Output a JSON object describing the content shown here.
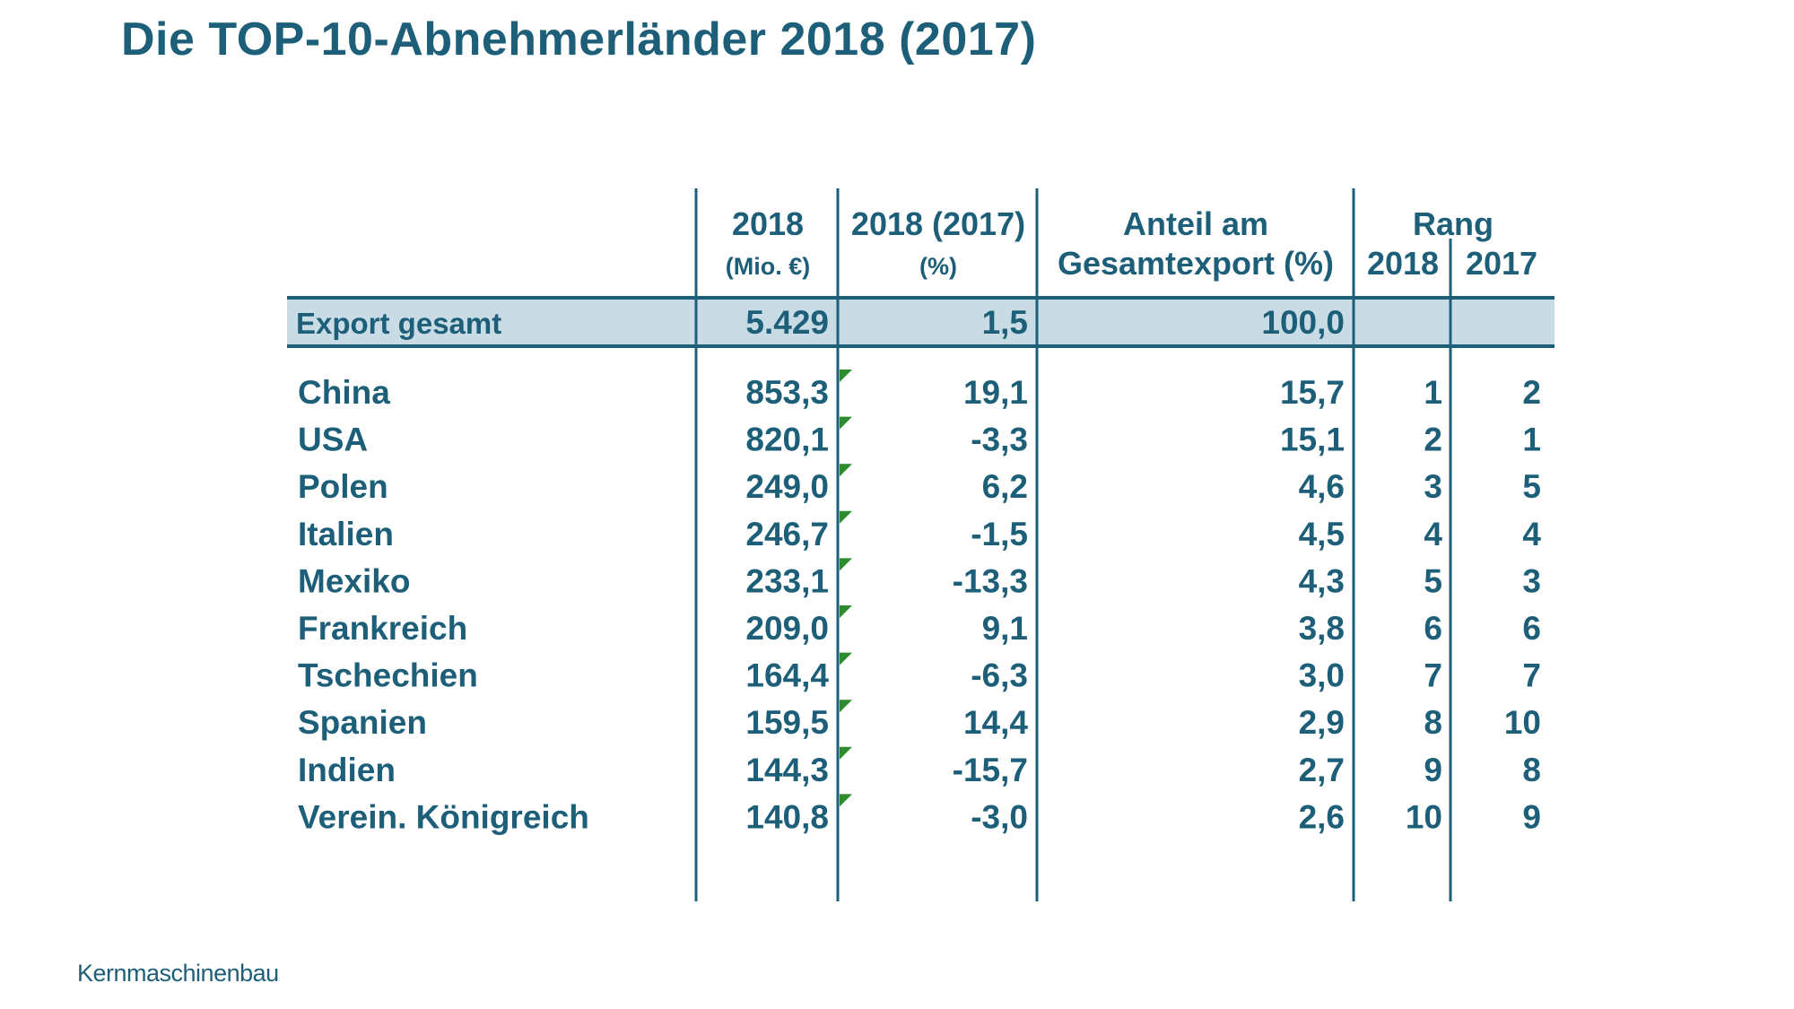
{
  "title": "Die TOP-10-Abnehmerländer 2018 (2017)",
  "footer": "Kernmaschinenbau",
  "colors": {
    "text": "#1d5f79",
    "rule": "#1d5f79",
    "total_fill": "#c9dce5",
    "marker": "#2e8b2e"
  },
  "chart_data": {
    "type": "table",
    "title": "Die TOP-10-Abnehmerländer 2018 (2017)",
    "headers": {
      "value_2018": {
        "line1": "2018",
        "line2": "(Mio. €)"
      },
      "change": {
        "line1": "2018 (2017)",
        "line2": "(%)"
      },
      "share": {
        "line1": "Anteil am",
        "line2": "Gesamtexport (%)"
      },
      "rank": {
        "label": "Rang",
        "year1": "2018",
        "year2": "2017"
      }
    },
    "total": {
      "label": "Export gesamt",
      "value": "5.429",
      "change": "1,5",
      "share": "100,0"
    },
    "rows": [
      {
        "country": "China",
        "value": "853,3",
        "change": "19,1",
        "share": "15,7",
        "rank2018": "1",
        "rank2017": "2"
      },
      {
        "country": "USA",
        "value": "820,1",
        "change": "-3,3",
        "share": "15,1",
        "rank2018": "2",
        "rank2017": "1"
      },
      {
        "country": "Polen",
        "value": "249,0",
        "change": "6,2",
        "share": "4,6",
        "rank2018": "3",
        "rank2017": "5"
      },
      {
        "country": "Italien",
        "value": "246,7",
        "change": "-1,5",
        "share": "4,5",
        "rank2018": "4",
        "rank2017": "4"
      },
      {
        "country": "Mexiko",
        "value": "233,1",
        "change": "-13,3",
        "share": "4,3",
        "rank2018": "5",
        "rank2017": "3"
      },
      {
        "country": "Frankreich",
        "value": "209,0",
        "change": "9,1",
        "share": "3,8",
        "rank2018": "6",
        "rank2017": "6"
      },
      {
        "country": "Tschechien",
        "value": "164,4",
        "change": "-6,3",
        "share": "3,0",
        "rank2018": "7",
        "rank2017": "7"
      },
      {
        "country": "Spanien",
        "value": "159,5",
        "change": "14,4",
        "share": "2,9",
        "rank2018": "8",
        "rank2017": "10"
      },
      {
        "country": "Indien",
        "value": "144,3",
        "change": "-15,7",
        "share": "2,7",
        "rank2018": "9",
        "rank2017": "8"
      },
      {
        "country": "Verein. Königreich",
        "value": "140,8",
        "change": "-3,0",
        "share": "2,6",
        "rank2018": "10",
        "rank2017": "9"
      }
    ]
  }
}
